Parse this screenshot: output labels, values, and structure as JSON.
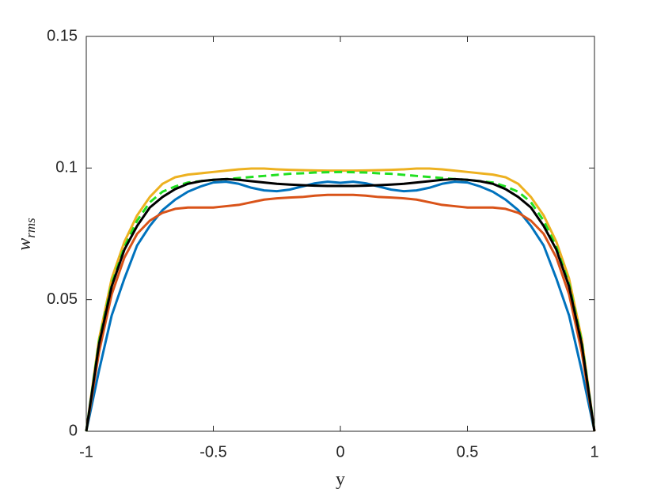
{
  "chart_data": {
    "type": "line",
    "xlabel": "y",
    "ylabel": {
      "text": "w",
      "subscript": "rms"
    },
    "x": [
      -1,
      -0.95,
      -0.9,
      -0.85,
      -0.8,
      -0.75,
      -0.7,
      -0.65,
      -0.6,
      -0.55,
      -0.5,
      -0.45,
      -0.4,
      -0.35,
      -0.3,
      -0.25,
      -0.2,
      -0.15,
      -0.1,
      -0.05,
      0,
      0.05,
      0.1,
      0.15,
      0.2,
      0.25,
      0.3,
      0.35,
      0.4,
      0.45,
      0.5,
      0.55,
      0.6,
      0.65,
      0.7,
      0.75,
      0.8,
      0.85,
      0.9,
      0.95,
      1
    ],
    "series": [
      {
        "color": "#0072bd",
        "dashed": false,
        "values": [
          0,
          0.023,
          0.044,
          0.058,
          0.0706,
          0.078,
          0.084,
          0.088,
          0.091,
          0.093,
          0.0945,
          0.0948,
          0.094,
          0.0925,
          0.0915,
          0.0912,
          0.0918,
          0.093,
          0.0942,
          0.0948,
          0.0944,
          0.0948,
          0.0942,
          0.093,
          0.0918,
          0.0912,
          0.0915,
          0.0925,
          0.094,
          0.0948,
          0.0945,
          0.093,
          0.091,
          0.088,
          0.084,
          0.078,
          0.0706,
          0.058,
          0.044,
          0.023,
          0
        ]
      },
      {
        "color": "#d95319",
        "dashed": false,
        "values": [
          0,
          0.03,
          0.052,
          0.066,
          0.075,
          0.08,
          0.083,
          0.0845,
          0.085,
          0.085,
          0.085,
          0.0855,
          0.086,
          0.087,
          0.088,
          0.0885,
          0.0888,
          0.089,
          0.0895,
          0.0898,
          0.0898,
          0.0898,
          0.0895,
          0.089,
          0.0888,
          0.0885,
          0.088,
          0.087,
          0.086,
          0.0855,
          0.085,
          0.085,
          0.085,
          0.0845,
          0.083,
          0.08,
          0.075,
          0.066,
          0.052,
          0.03,
          0
        ]
      },
      {
        "color": "#edb120",
        "dashed": false,
        "values": [
          0,
          0.035,
          0.058,
          0.072,
          0.082,
          0.089,
          0.094,
          0.0965,
          0.0975,
          0.098,
          0.0985,
          0.099,
          0.0995,
          0.0998,
          0.0998,
          0.0995,
          0.0993,
          0.0992,
          0.0991,
          0.099,
          0.099,
          0.099,
          0.0991,
          0.0992,
          0.0993,
          0.0995,
          0.0998,
          0.0998,
          0.0995,
          0.099,
          0.0985,
          0.098,
          0.0975,
          0.0965,
          0.094,
          0.089,
          0.082,
          0.072,
          0.058,
          0.035,
          0
        ]
      },
      {
        "color": "#22e022",
        "dashed": true,
        "values": [
          0,
          0.034,
          0.056,
          0.07,
          0.08,
          0.087,
          0.091,
          0.093,
          0.0945,
          0.095,
          0.0955,
          0.0958,
          0.0962,
          0.0966,
          0.097,
          0.0974,
          0.0978,
          0.098,
          0.0983,
          0.0984,
          0.0985,
          0.0984,
          0.0983,
          0.098,
          0.0978,
          0.0974,
          0.097,
          0.0966,
          0.0962,
          0.0958,
          0.0955,
          0.095,
          0.0945,
          0.093,
          0.091,
          0.087,
          0.08,
          0.07,
          0.056,
          0.034,
          0
        ]
      },
      {
        "color": "#000000",
        "dashed": false,
        "values": [
          0,
          0.033,
          0.055,
          0.069,
          0.078,
          0.085,
          0.089,
          0.092,
          0.094,
          0.095,
          0.0955,
          0.0958,
          0.0955,
          0.095,
          0.0945,
          0.094,
          0.0937,
          0.0935,
          0.0933,
          0.0932,
          0.0932,
          0.0932,
          0.0933,
          0.0935,
          0.0937,
          0.094,
          0.0945,
          0.095,
          0.0955,
          0.0958,
          0.0955,
          0.095,
          0.094,
          0.092,
          0.089,
          0.085,
          0.078,
          0.069,
          0.055,
          0.033,
          0
        ]
      }
    ],
    "xlim": [
      -1,
      1
    ],
    "xticks": [
      -1,
      -0.5,
      0,
      0.5,
      1
    ],
    "ylim": [
      0,
      0.15
    ],
    "yticks": [
      0,
      0.05,
      0.1,
      0.15
    ],
    "grid": false,
    "box": true
  }
}
